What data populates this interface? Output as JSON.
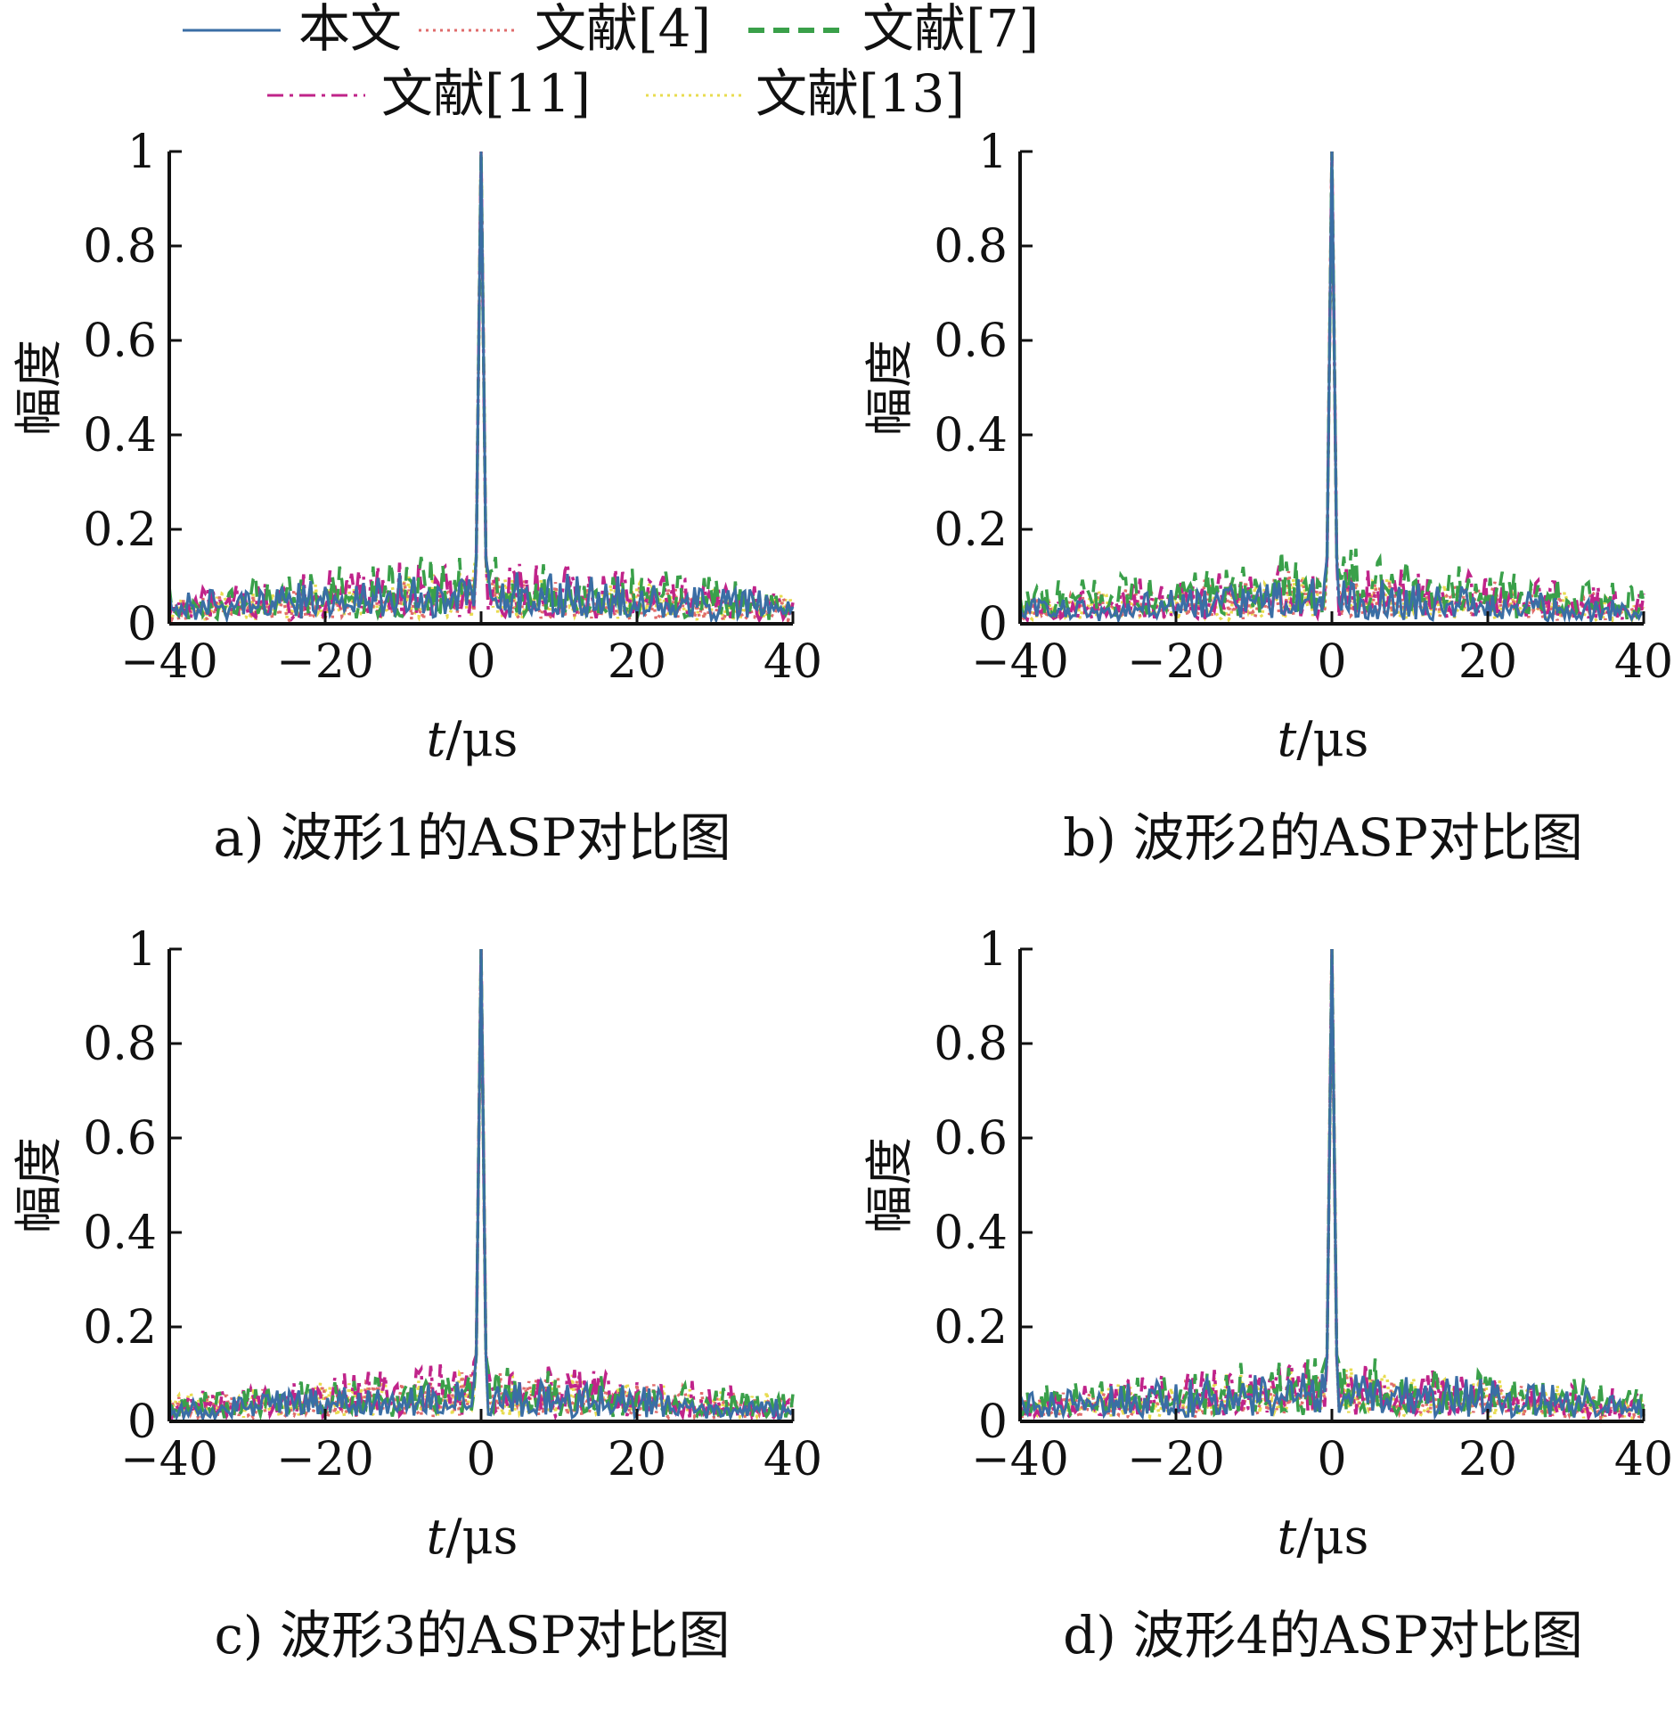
{
  "legend": {
    "entries": [
      {
        "label": "本文",
        "color": "#3a6ea5",
        "dash": "solid"
      },
      {
        "label": "文献[4]",
        "color": "#e06c6c",
        "dash": "dotted"
      },
      {
        "label": "文献[7]",
        "color": "#3aa04a",
        "dash": "dashed"
      },
      {
        "label": "文献[11]",
        "color": "#c0248a",
        "dash": "dashdot"
      },
      {
        "label": "文献[13]",
        "color": "#e8dc50",
        "dash": "dotted"
      }
    ]
  },
  "chart_data": [
    {
      "type": "line",
      "caption": "a) 波形1的ASP对比图",
      "xlabel_italic": "t",
      "xlabel_unit": "/μs",
      "ylabel": "幅度",
      "xlim": [
        -40,
        40
      ],
      "ylim": [
        0,
        1
      ],
      "xticks": [
        "−40",
        "−20",
        "0",
        "20",
        "40"
      ],
      "yticks": [
        "0",
        "0.2",
        "0.4",
        "0.6",
        "0.8",
        "1"
      ],
      "peak": {
        "x": 0,
        "y": 1
      },
      "sidelobe_max": [
        0.13,
        0.11,
        0.16,
        0.15,
        0.12
      ],
      "noise_seed": 11
    },
    {
      "type": "line",
      "caption": "b) 波形2的ASP对比图",
      "xlabel_italic": "t",
      "xlabel_unit": "/μs",
      "ylabel": "幅度",
      "xlim": [
        -40,
        40
      ],
      "ylim": [
        0,
        1
      ],
      "xticks": [
        "−40",
        "−20",
        "0",
        "20",
        "40"
      ],
      "yticks": [
        "0",
        "0.2",
        "0.4",
        "0.6",
        "0.8",
        "1"
      ],
      "peak": {
        "x": 0,
        "y": 1
      },
      "sidelobe_max": [
        0.1,
        0.12,
        0.17,
        0.14,
        0.11
      ],
      "noise_seed": 23
    },
    {
      "type": "line",
      "caption": "c) 波形3的ASP对比图",
      "xlabel_italic": "t",
      "xlabel_unit": "/μs",
      "ylabel": "幅度",
      "xlim": [
        -40,
        40
      ],
      "ylim": [
        0,
        1
      ],
      "xticks": [
        "−40",
        "−20",
        "0",
        "20",
        "40"
      ],
      "yticks": [
        "0",
        "0.2",
        "0.4",
        "0.6",
        "0.8",
        "1"
      ],
      "peak": {
        "x": 0,
        "y": 1
      },
      "sidelobe_max": [
        0.1,
        0.11,
        0.12,
        0.13,
        0.12
      ],
      "noise_seed": 37
    },
    {
      "type": "line",
      "caption": "d) 波形4的ASP对比图",
      "xlabel_italic": "t",
      "xlabel_unit": "/μs",
      "ylabel": "幅度",
      "xlim": [
        -40,
        40
      ],
      "ylim": [
        0,
        1
      ],
      "xticks": [
        "−40",
        "−20",
        "0",
        "20",
        "40"
      ],
      "yticks": [
        "0",
        "0.2",
        "0.4",
        "0.6",
        "0.8",
        "1"
      ],
      "peak": {
        "x": 0,
        "y": 1
      },
      "sidelobe_max": [
        0.12,
        0.11,
        0.15,
        0.14,
        0.12
      ],
      "noise_seed": 53
    }
  ]
}
